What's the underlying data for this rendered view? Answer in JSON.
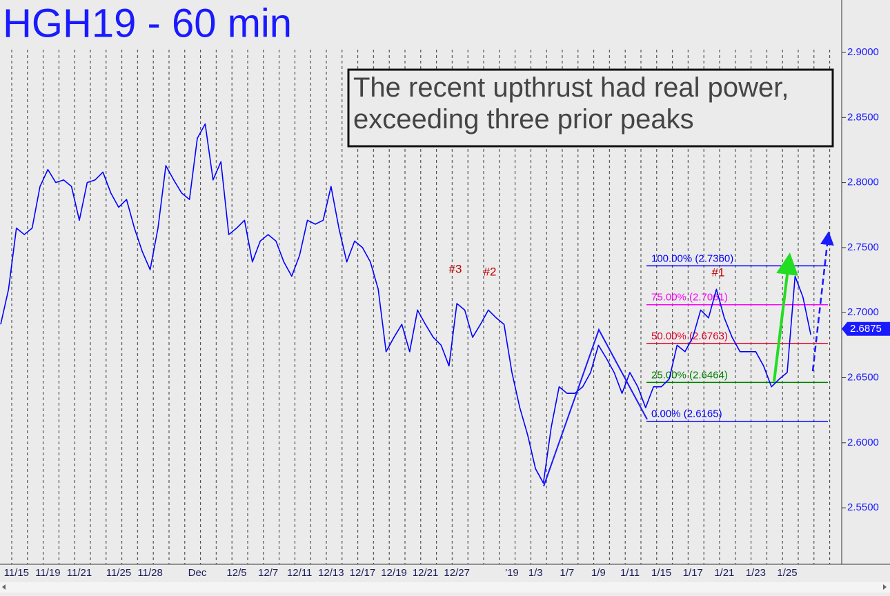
{
  "chart_data": {
    "type": "line",
    "title": "HGH19 - 60 min",
    "annotation": "The recent upthrust had real power, exceeding three prior peaks",
    "peak_labels": [
      "#3",
      "#2",
      "#1"
    ],
    "categories": [
      null,
      null,
      "11/15",
      null,
      null,
      null,
      "11/19",
      null,
      null,
      null,
      "11/21",
      null,
      null,
      null,
      null,
      "11/25",
      null,
      null,
      null,
      "11/28",
      null,
      null,
      null,
      null,
      null,
      "Dec",
      null,
      null,
      null,
      null,
      "12/5",
      null,
      null,
      null,
      "12/7",
      null,
      null,
      null,
      "12/11",
      null,
      null,
      null,
      "12/13",
      null,
      null,
      null,
      "12/17",
      null,
      null,
      null,
      "12/19",
      null,
      null,
      null,
      "12/21",
      null,
      null,
      null,
      "12/27",
      null,
      null,
      null,
      null,
      null,
      null,
      "'19",
      null,
      null,
      "1/3",
      null,
      null,
      null,
      "1/7",
      null,
      null,
      null,
      "1/9",
      null,
      null,
      null,
      "1/11",
      null,
      null,
      null,
      "1/15",
      null,
      null,
      null,
      "1/17",
      null,
      null,
      null,
      "1/21",
      null,
      null,
      null,
      "1/23",
      null,
      null,
      null,
      "1/25",
      null,
      null,
      null
    ],
    "series": [
      {
        "color": "#0000ff",
        "values": [
          2.691,
          2.718,
          2.765,
          2.76,
          2.765,
          2.797,
          2.81,
          2.8,
          2.802,
          2.797,
          2.771,
          2.8,
          2.802,
          2.808,
          2.792,
          2.781,
          2.787,
          2.765,
          2.747,
          2.733,
          2.765,
          2.813,
          2.802,
          2.792,
          2.787,
          2.834,
          2.845,
          2.802,
          2.816,
          2.76,
          2.765,
          2.771,
          2.739,
          2.755,
          2.76,
          2.755,
          2.739,
          2.728,
          2.744,
          2.771,
          2.768,
          2.771,
          2.797,
          2.765,
          2.739,
          2.755,
          2.75,
          2.739,
          2.718,
          2.67,
          2.681,
          2.691,
          2.67,
          2.702,
          2.691,
          2.681,
          2.675,
          2.659,
          2.707,
          2.702,
          2.681,
          2.691,
          2.702,
          2.696,
          2.691,
          2.654,
          2.627,
          2.606,
          2.58,
          2.569,
          2.612,
          2.643,
          2.638,
          2.638,
          2.643,
          2.654,
          2.675,
          2.665,
          2.654,
          2.638,
          2.654,
          2.643,
          2.627,
          2.643,
          2.643,
          2.649,
          2.675,
          2.67,
          2.681,
          2.702,
          2.696,
          2.718,
          2.696,
          2.681,
          2.67,
          2.67,
          2.67,
          2.659,
          2.643,
          2.649,
          2.654,
          2.728,
          2.712,
          2.683
        ]
      }
    ],
    "last_price": 2.6875,
    "fib_levels": [
      {
        "value": 2.736,
        "label": "100.00% (2.7360)",
        "color": "#0000ff"
      },
      {
        "value": 2.7061,
        "label": "75.00% (2.7061)",
        "color": "#ff00ff"
      },
      {
        "value": 2.6763,
        "label": "50.00% (2.6763)",
        "color": "#e0002a"
      },
      {
        "value": 2.6464,
        "label": "25.00% (2.6464)",
        "color": "#008000"
      },
      {
        "value": 2.6165,
        "label": "0.00% (2.6165)",
        "color": "#0000ff"
      }
    ],
    "ylim": [
      2.5066,
      2.9403
    ],
    "yticks": [
      {
        "value": 2.55,
        "label": "2.5500"
      },
      {
        "value": 2.6,
        "label": "2.6000"
      },
      {
        "value": 2.65,
        "label": "2.6500"
      },
      {
        "value": 2.7,
        "label": "2.7000"
      },
      {
        "value": 2.75,
        "label": "2.7500"
      },
      {
        "value": 2.8,
        "label": "2.8000"
      },
      {
        "value": 2.85,
        "label": "2.8500"
      },
      {
        "value": 2.9,
        "label": "2.9000"
      }
    ]
  }
}
